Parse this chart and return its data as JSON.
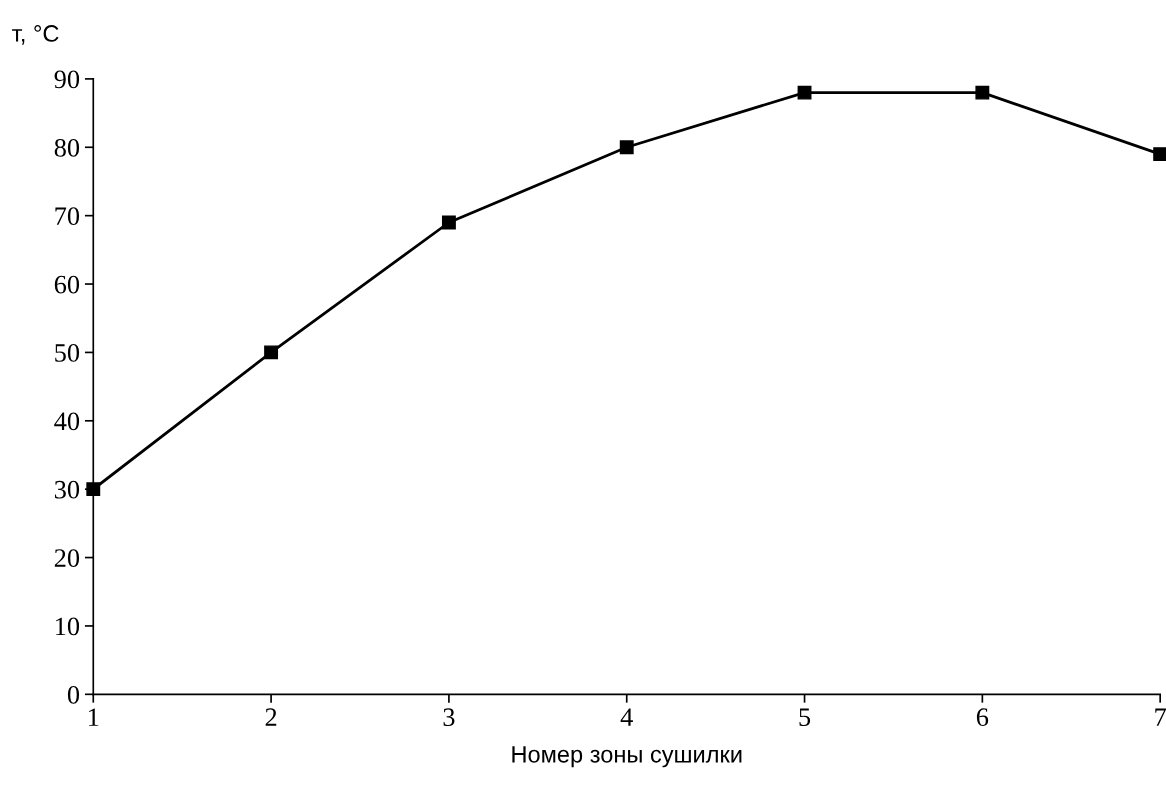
{
  "chart_data": {
    "type": "line",
    "xlabel": "Номер зоны сушилки",
    "ylabel": "т, °С",
    "x": [
      1,
      2,
      3,
      4,
      5,
      6,
      7
    ],
    "series": [
      {
        "color": "#000000",
        "values": [
          30,
          50,
          69,
          80,
          88,
          88,
          79
        ]
      }
    ],
    "xlim": [
      1,
      7
    ],
    "xticks": [
      1,
      2,
      3,
      4,
      5,
      6,
      7
    ],
    "ylim": [
      0,
      90
    ],
    "yticks": [
      0,
      10,
      20,
      30,
      40,
      50,
      60,
      70,
      80,
      90
    ],
    "grid": false,
    "legend": false,
    "marker": "square",
    "line_style": "solid"
  }
}
